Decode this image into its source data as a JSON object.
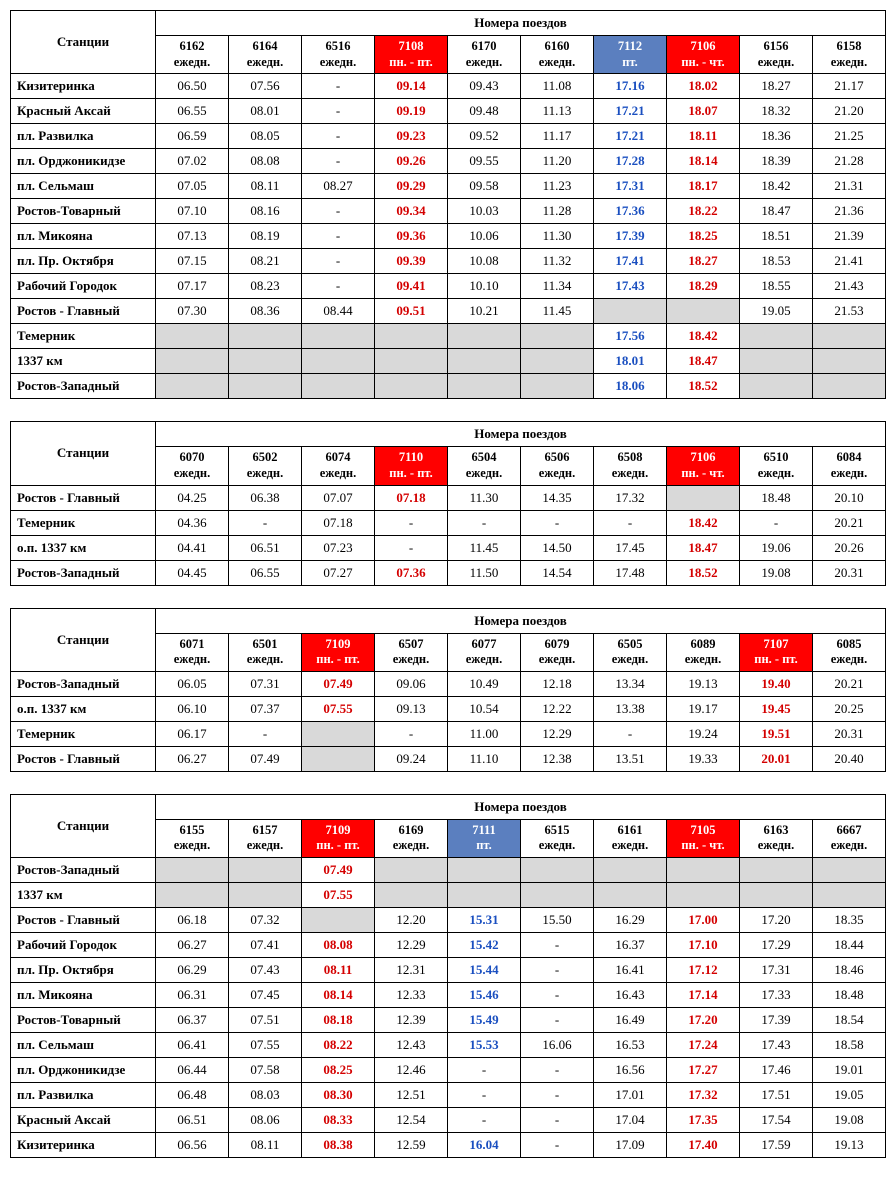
{
  "labels": {
    "stations": "Станции",
    "trains": "Номера поездов",
    "daily": "ежедн.",
    "mon_fri": "пн. - пт.",
    "fri": "пт.",
    "mon_thu": "пн. - чт."
  },
  "colors": {
    "red_bg": "#ff0000",
    "blue_bg": "#5b7fbf",
    "white": "#ffffff",
    "red_txt": "#d40000",
    "blue_txt": "#1a4fc0",
    "grey": "#d9d9d9",
    "border": "#000000"
  },
  "t1": {
    "trains": [
      {
        "num": "6162",
        "sched": "ежедн.",
        "style": "plain"
      },
      {
        "num": "6164",
        "sched": "ежедн.",
        "style": "plain"
      },
      {
        "num": "6516",
        "sched": "ежедн.",
        "style": "plain"
      },
      {
        "num": "7108",
        "sched": "пн. - пт.",
        "style": "red"
      },
      {
        "num": "6170",
        "sched": "ежедн.",
        "style": "plain"
      },
      {
        "num": "6160",
        "sched": "ежедн.",
        "style": "plain"
      },
      {
        "num": "7112",
        "sched": "пт.",
        "style": "blue"
      },
      {
        "num": "7106",
        "sched": "пн. - чт.",
        "style": "red"
      },
      {
        "num": "6156",
        "sched": "ежедн.",
        "style": "plain"
      },
      {
        "num": "6158",
        "sched": "ежедн.",
        "style": "plain"
      }
    ],
    "rows": [
      {
        "station": "Кизитеринка",
        "cells": [
          "06.50",
          "07.56",
          "-",
          "09.14",
          "09.43",
          "11.08",
          "17.16",
          "18.02",
          "18.27",
          "21.17"
        ]
      },
      {
        "station": "Красный Аксай",
        "cells": [
          "06.55",
          "08.01",
          "-",
          "09.19",
          "09.48",
          "11.13",
          "17.21",
          "18.07",
          "18.32",
          "21.20"
        ]
      },
      {
        "station": "пл. Развилка",
        "cells": [
          "06.59",
          "08.05",
          "-",
          "09.23",
          "09.52",
          "11.17",
          "17.21",
          "18.11",
          "18.36",
          "21.25"
        ]
      },
      {
        "station": "пл. Орджоникидзе",
        "cells": [
          "07.02",
          "08.08",
          "-",
          "09.26",
          "09.55",
          "11.20",
          "17.28",
          "18.14",
          "18.39",
          "21.28"
        ]
      },
      {
        "station": "пл. Сельмаш",
        "cells": [
          "07.05",
          "08.11",
          "08.27",
          "09.29",
          "09.58",
          "11.23",
          "17.31",
          "18.17",
          "18.42",
          "21.31"
        ]
      },
      {
        "station": "Ростов-Товарный",
        "cells": [
          "07.10",
          "08.16",
          "-",
          "09.34",
          "10.03",
          "11.28",
          "17.36",
          "18.22",
          "18.47",
          "21.36"
        ]
      },
      {
        "station": "пл. Микояна",
        "cells": [
          "07.13",
          "08.19",
          "-",
          "09.36",
          "10.06",
          "11.30",
          "17.39",
          "18.25",
          "18.51",
          "21.39"
        ]
      },
      {
        "station": "пл. Пр. Октября",
        "cells": [
          "07.15",
          "08.21",
          "-",
          "09.39",
          "10.08",
          "11.32",
          "17.41",
          "18.27",
          "18.53",
          "21.41"
        ]
      },
      {
        "station": "Рабочий Городок",
        "cells": [
          "07.17",
          "08.23",
          "-",
          "09.41",
          "10.10",
          "11.34",
          "17.43",
          "18.29",
          "18.55",
          "21.43"
        ]
      },
      {
        "station": "Ростов - Главный",
        "cells": [
          "07.30",
          "08.36",
          "08.44",
          "09.51",
          "10.21",
          "11.45",
          "GREY",
          "GREY",
          "19.05",
          "21.53"
        ]
      },
      {
        "station": "Темерник",
        "cells": [
          "GREY",
          "GREY",
          "GREY",
          "GREY",
          "GREY",
          "GREY",
          "17.56",
          "18.42",
          "GREY",
          "GREY"
        ]
      },
      {
        "station": "1337 км",
        "cells": [
          "GREY",
          "GREY",
          "GREY",
          "GREY",
          "GREY",
          "GREY",
          "18.01",
          "18.47",
          "GREY",
          "GREY"
        ]
      },
      {
        "station": "Ростов-Западный",
        "cells": [
          "GREY",
          "GREY",
          "GREY",
          "GREY",
          "GREY",
          "GREY",
          "18.06",
          "18.52",
          "GREY",
          "GREY"
        ]
      }
    ]
  },
  "t2": {
    "trains": [
      {
        "num": "6070",
        "sched": "ежедн.",
        "style": "plain"
      },
      {
        "num": "6502",
        "sched": "ежедн.",
        "style": "plain"
      },
      {
        "num": "6074",
        "sched": "ежедн.",
        "style": "plain"
      },
      {
        "num": "7110",
        "sched": "пн. - пт.",
        "style": "red"
      },
      {
        "num": "6504",
        "sched": "ежедн.",
        "style": "plain"
      },
      {
        "num": "6506",
        "sched": "ежедн.",
        "style": "plain"
      },
      {
        "num": "6508",
        "sched": "ежедн.",
        "style": "plain"
      },
      {
        "num": "7106",
        "sched": "пн. - чт.",
        "style": "red"
      },
      {
        "num": "6510",
        "sched": "ежедн.",
        "style": "plain"
      },
      {
        "num": "6084",
        "sched": "ежедн.",
        "style": "plain"
      }
    ],
    "rows": [
      {
        "station": "Ростов - Главный",
        "cells": [
          "04.25",
          "06.38",
          "07.07",
          "07.18",
          "11.30",
          "14.35",
          "17.32",
          "GREY",
          "18.48",
          "20.10"
        ]
      },
      {
        "station": "Темерник",
        "cells": [
          "04.36",
          "-",
          "07.18",
          "-",
          "-",
          "-",
          "-",
          "18.42",
          "-",
          "20.21"
        ]
      },
      {
        "station": "о.п. 1337 км",
        "cells": [
          "04.41",
          "06.51",
          "07.23",
          "-",
          "11.45",
          "14.50",
          "17.45",
          "18.47",
          "19.06",
          "20.26"
        ]
      },
      {
        "station": "Ростов-Западный",
        "cells": [
          "04.45",
          "06.55",
          "07.27",
          "07.36",
          "11.50",
          "14.54",
          "17.48",
          "18.52",
          "19.08",
          "20.31"
        ]
      }
    ]
  },
  "t3": {
    "trains": [
      {
        "num": "6071",
        "sched": "ежедн.",
        "style": "plain"
      },
      {
        "num": "6501",
        "sched": "ежедн.",
        "style": "plain"
      },
      {
        "num": "7109",
        "sched": "пн. - пт.",
        "style": "red"
      },
      {
        "num": "6507",
        "sched": "ежедн.",
        "style": "plain"
      },
      {
        "num": "6077",
        "sched": "ежедн.",
        "style": "plain"
      },
      {
        "num": "6079",
        "sched": "ежедн.",
        "style": "plain"
      },
      {
        "num": "6505",
        "sched": "ежедн.",
        "style": "plain"
      },
      {
        "num": "6089",
        "sched": "ежедн.",
        "style": "plain"
      },
      {
        "num": "7107",
        "sched": "пн. - пт.",
        "style": "red"
      },
      {
        "num": "6085",
        "sched": "ежедн.",
        "style": "plain"
      }
    ],
    "rows": [
      {
        "station": "Ростов-Западный",
        "cells": [
          "06.05",
          "07.31",
          "07.49",
          "09.06",
          "10.49",
          "12.18",
          "13.34",
          "19.13",
          "19.40",
          "20.21"
        ]
      },
      {
        "station": "о.п. 1337 км",
        "cells": [
          "06.10",
          "07.37",
          "07.55",
          "09.13",
          "10.54",
          "12.22",
          "13.38",
          "19.17",
          "19.45",
          "20.25"
        ]
      },
      {
        "station": "Темерник",
        "cells": [
          "06.17",
          "-",
          "GREY",
          "-",
          "11.00",
          "12.29",
          "-",
          "19.24",
          "19.51",
          "20.31"
        ]
      },
      {
        "station": "Ростов - Главный",
        "cells": [
          "06.27",
          "07.49",
          "GREY",
          "09.24",
          "11.10",
          "12.38",
          "13.51",
          "19.33",
          "20.01",
          "20.40"
        ]
      }
    ]
  },
  "t4": {
    "trains": [
      {
        "num": "6155",
        "sched": "ежедн.",
        "style": "plain"
      },
      {
        "num": "6157",
        "sched": "ежедн.",
        "style": "plain"
      },
      {
        "num": "7109",
        "sched": "пн. - пт.",
        "style": "red"
      },
      {
        "num": "6169",
        "sched": "ежедн.",
        "style": "plain"
      },
      {
        "num": "7111",
        "sched": "пт.",
        "style": "blue"
      },
      {
        "num": "6515",
        "sched": "ежедн.",
        "style": "plain"
      },
      {
        "num": "6161",
        "sched": "ежедн.",
        "style": "plain"
      },
      {
        "num": "7105",
        "sched": "пн. - чт.",
        "style": "red"
      },
      {
        "num": "6163",
        "sched": "ежедн.",
        "style": "plain"
      },
      {
        "num": "6667",
        "sched": "ежедн.",
        "style": "plain"
      }
    ],
    "rows": [
      {
        "station": "Ростов-Западный",
        "cells": [
          "GREY",
          "GREY",
          "07.49",
          "GREY",
          "GREY",
          "GREY",
          "GREY",
          "GREY",
          "GREY",
          "GREY"
        ]
      },
      {
        "station": "1337 км",
        "cells": [
          "GREY",
          "GREY",
          "07.55",
          "GREY",
          "GREY",
          "GREY",
          "GREY",
          "GREY",
          "GREY",
          "GREY"
        ]
      },
      {
        "station": "Ростов - Главный",
        "cells": [
          "06.18",
          "07.32",
          "GREY",
          "12.20",
          "15.31",
          "15.50",
          "16.29",
          "17.00",
          "17.20",
          "18.35"
        ]
      },
      {
        "station": "Рабочий Городок",
        "cells": [
          "06.27",
          "07.41",
          "08.08",
          "12.29",
          "15.42",
          "-",
          "16.37",
          "17.10",
          "17.29",
          "18.44"
        ]
      },
      {
        "station": "пл. Пр. Октября",
        "cells": [
          "06.29",
          "07.43",
          "08.11",
          "12.31",
          "15.44",
          "-",
          "16.41",
          "17.12",
          "17.31",
          "18.46"
        ]
      },
      {
        "station": "пл. Микояна",
        "cells": [
          "06.31",
          "07.45",
          "08.14",
          "12.33",
          "15.46",
          "-",
          "16.43",
          "17.14",
          "17.33",
          "18.48"
        ]
      },
      {
        "station": "Ростов-Товарный",
        "cells": [
          "06.37",
          "07.51",
          "08.18",
          "12.39",
          "15.49",
          "-",
          "16.49",
          "17.20",
          "17.39",
          "18.54"
        ]
      },
      {
        "station": "пл. Сельмаш",
        "cells": [
          "06.41",
          "07.55",
          "08.22",
          "12.43",
          "15.53",
          "16.06",
          "16.53",
          "17.24",
          "17.43",
          "18.58"
        ]
      },
      {
        "station": "пл. Орджоникидзе",
        "cells": [
          "06.44",
          "07.58",
          "08.25",
          "12.46",
          "-",
          "-",
          "16.56",
          "17.27",
          "17.46",
          "19.01"
        ]
      },
      {
        "station": "пл. Развилка",
        "cells": [
          "06.48",
          "08.03",
          "08.30",
          "12.51",
          "-",
          "-",
          "17.01",
          "17.32",
          "17.51",
          "19.05"
        ]
      },
      {
        "station": "Красный Аксай",
        "cells": [
          "06.51",
          "08.06",
          "08.33",
          "12.54",
          "-",
          "-",
          "17.04",
          "17.35",
          "17.54",
          "19.08"
        ]
      },
      {
        "station": "Кизитеринка",
        "cells": [
          "06.56",
          "08.11",
          "08.38",
          "12.59",
          "16.04",
          "-",
          "17.09",
          "17.40",
          "17.59",
          "19.13"
        ]
      }
    ]
  }
}
